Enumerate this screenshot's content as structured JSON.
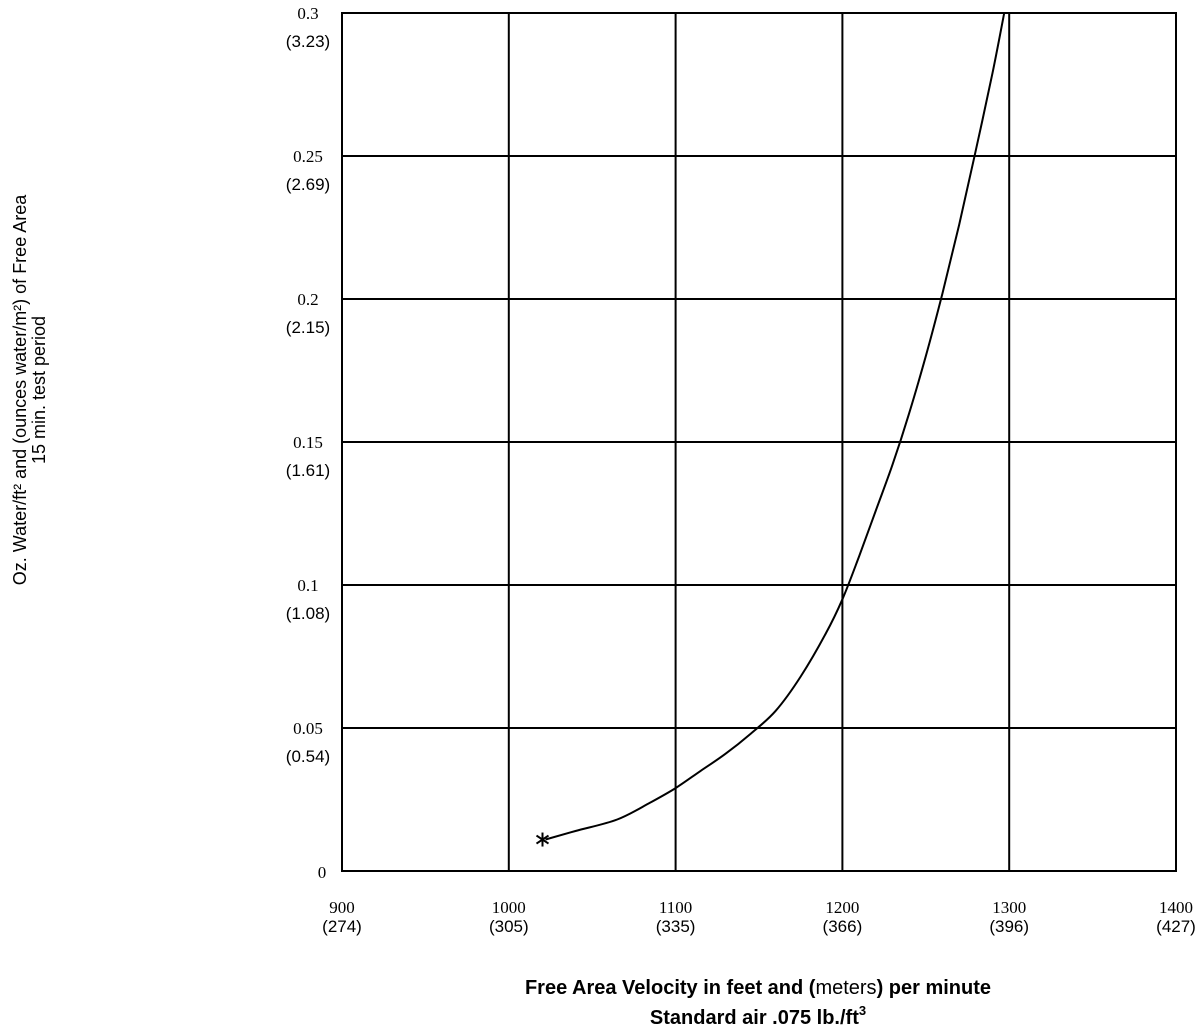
{
  "chart_data": {
    "type": "line",
    "x_ticks": [
      {
        "value": 900,
        "label": "900",
        "sub": "(274)"
      },
      {
        "value": 1000,
        "label": "1000",
        "sub": "(305)"
      },
      {
        "value": 1100,
        "label": "1100",
        "sub": "(335)"
      },
      {
        "value": 1200,
        "label": "1200",
        "sub": "(366)"
      },
      {
        "value": 1300,
        "label": "1300",
        "sub": "(396)"
      },
      {
        "value": 1400,
        "label": "1400",
        "sub": "(427)"
      }
    ],
    "y_ticks": [
      {
        "value": 0,
        "label": "0",
        "sub": ""
      },
      {
        "value": 0.05,
        "label": "0.05",
        "sub": "(0.54)"
      },
      {
        "value": 0.1,
        "label": "0.1",
        "sub": "(1.08)"
      },
      {
        "value": 0.15,
        "label": "0.15",
        "sub": "(1.61)"
      },
      {
        "value": 0.2,
        "label": "0.2",
        "sub": "(2.15)"
      },
      {
        "value": 0.25,
        "label": "0.25",
        "sub": "(2.69)"
      },
      {
        "value": 0.3,
        "label": "0.3",
        "sub": "(3.23)"
      }
    ],
    "xlim": [
      900,
      1400
    ],
    "ylim": [
      0,
      0.3
    ],
    "grid": true,
    "xlabel_line1_bold_a": "Free Area Velocity in feet and (",
    "xlabel_line1_normal": "meters",
    "xlabel_line1_bold_b": ") per minute",
    "xlabel_line2": "Standard air .075 lb./ft",
    "xlabel_line2_sup": "3",
    "ylabel_line1": "Oz. Water/ft² and (ounces water/m²) of Free Area",
    "ylabel_line2": "15 min. test period",
    "series": [
      {
        "points": [
          [
            1022,
            0.011
          ],
          [
            1040,
            0.014
          ],
          [
            1065,
            0.018
          ],
          [
            1085,
            0.024
          ],
          [
            1100,
            0.029
          ],
          [
            1115,
            0.035
          ],
          [
            1130,
            0.041
          ],
          [
            1145,
            0.048
          ],
          [
            1160,
            0.056
          ],
          [
            1175,
            0.068
          ],
          [
            1190,
            0.083
          ],
          [
            1200,
            0.095
          ],
          [
            1210,
            0.11
          ],
          [
            1220,
            0.126
          ],
          [
            1230,
            0.142
          ],
          [
            1240,
            0.16
          ],
          [
            1250,
            0.18
          ],
          [
            1260,
            0.202
          ],
          [
            1270,
            0.226
          ],
          [
            1280,
            0.252
          ],
          [
            1290,
            0.279
          ],
          [
            1297,
            0.3
          ]
        ],
        "start_marker": "asterisk",
        "color": "#000000"
      }
    ]
  }
}
